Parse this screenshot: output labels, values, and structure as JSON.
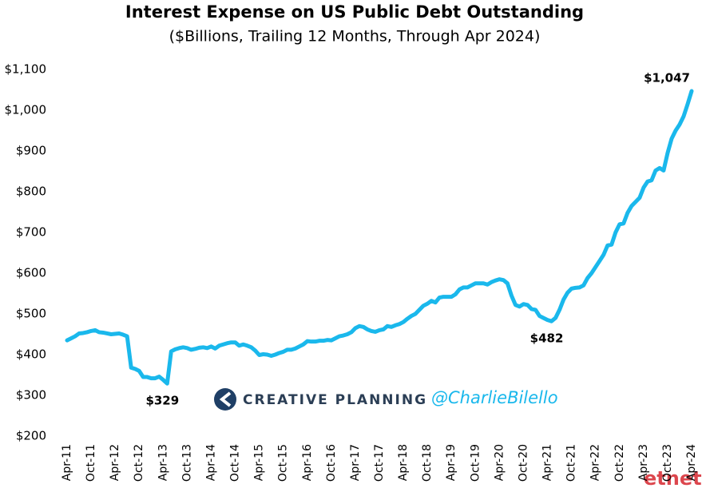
{
  "chart_data": {
    "type": "line",
    "title": "Interest Expense on US Public Debt Outstanding",
    "subtitle": "($Billions, Trailing 12 Months, Through Apr 2024)",
    "categories": [
      "Apr-11",
      null,
      null,
      null,
      null,
      null,
      "Oct-11",
      null,
      null,
      null,
      null,
      null,
      "Apr-12",
      null,
      null,
      null,
      null,
      null,
      "Oct-12",
      null,
      null,
      null,
      null,
      null,
      "Apr-13",
      null,
      null,
      null,
      null,
      null,
      "Oct-13",
      null,
      null,
      null,
      null,
      null,
      "Apr-14",
      null,
      null,
      null,
      null,
      null,
      "Oct-14",
      null,
      null,
      null,
      null,
      null,
      "Apr-15",
      null,
      null,
      null,
      null,
      null,
      "Oct-15",
      null,
      null,
      null,
      null,
      null,
      "Apr-16",
      null,
      null,
      null,
      null,
      null,
      "Oct-16",
      null,
      null,
      null,
      null,
      null,
      "Apr-17",
      null,
      null,
      null,
      null,
      null,
      "Oct-17",
      null,
      null,
      null,
      null,
      null,
      "Apr-18",
      null,
      null,
      null,
      null,
      null,
      "Oct-18",
      null,
      null,
      null,
      null,
      null,
      "Apr-19",
      null,
      null,
      null,
      null,
      null,
      "Oct-19",
      null,
      null,
      null,
      null,
      null,
      "Apr-20",
      null,
      null,
      null,
      null,
      null,
      "Oct-20",
      null,
      null,
      null,
      null,
      null,
      "Apr-21",
      null,
      null,
      null,
      null,
      null,
      "Oct-21",
      null,
      null,
      null,
      null,
      null,
      "Apr-22",
      null,
      null,
      null,
      null,
      null,
      "Oct-22",
      null,
      null,
      null,
      null,
      null,
      "Apr-23",
      null,
      null,
      null,
      null,
      null,
      "Oct-23",
      null,
      null,
      null,
      null,
      null,
      "Apr-24"
    ],
    "values": [
      435,
      440,
      445,
      452,
      453,
      455,
      458,
      460,
      455,
      454,
      452,
      450,
      451,
      452,
      449,
      445,
      368,
      365,
      360,
      345,
      345,
      342,
      342,
      346,
      338,
      329,
      408,
      413,
      416,
      418,
      416,
      412,
      414,
      417,
      418,
      416,
      420,
      415,
      422,
      425,
      428,
      430,
      430,
      422,
      425,
      422,
      418,
      410,
      399,
      401,
      400,
      397,
      400,
      404,
      407,
      412,
      412,
      415,
      420,
      425,
      433,
      432,
      432,
      434,
      434,
      436,
      435,
      440,
      445,
      447,
      450,
      455,
      465,
      470,
      468,
      462,
      458,
      456,
      460,
      462,
      470,
      468,
      472,
      475,
      480,
      488,
      495,
      500,
      510,
      520,
      525,
      532,
      528,
      540,
      542,
      542,
      542,
      548,
      560,
      565,
      565,
      570,
      575,
      575,
      575,
      572,
      578,
      582,
      585,
      583,
      575,
      545,
      522,
      518,
      524,
      522,
      512,
      510,
      495,
      490,
      485,
      482,
      490,
      510,
      535,
      552,
      562,
      564,
      565,
      570,
      588,
      600,
      615,
      630,
      645,
      668,
      670,
      700,
      720,
      722,
      748,
      765,
      775,
      785,
      810,
      825,
      828,
      852,
      858,
      852,
      895,
      930,
      950,
      965,
      985,
      1015,
      1047
    ],
    "value_labels": [
      null,
      null,
      null,
      null,
      null,
      null,
      null,
      null,
      null,
      null,
      null,
      null,
      null,
      null,
      null,
      null,
      null,
      null,
      null,
      null,
      null,
      null,
      null,
      null,
      null,
      "$329",
      null,
      null,
      null,
      null,
      null,
      null,
      null,
      null,
      null,
      null,
      null,
      null,
      null,
      null,
      null,
      null,
      null,
      null,
      null,
      null,
      null,
      null,
      null,
      null,
      null,
      null,
      null,
      null,
      null,
      null,
      null,
      null,
      null,
      null,
      null,
      null,
      null,
      null,
      null,
      null,
      null,
      null,
      null,
      null,
      null,
      null,
      null,
      null,
      null,
      null,
      null,
      null,
      null,
      null,
      null,
      null,
      null,
      null,
      null,
      null,
      null,
      null,
      null,
      null,
      null,
      null,
      null,
      null,
      null,
      null,
      null,
      null,
      null,
      null,
      null,
      null,
      null,
      null,
      null,
      null,
      null,
      null,
      null,
      null,
      null,
      null,
      null,
      null,
      null,
      null,
      null,
      null,
      null,
      null,
      null,
      "$482",
      null,
      null,
      null,
      null,
      null,
      null,
      null,
      null,
      null,
      null,
      null,
      null,
      null,
      null,
      null,
      null,
      null,
      null,
      null,
      null,
      null,
      null,
      null,
      null,
      null,
      null,
      null,
      null,
      null,
      null,
      null,
      null,
      null,
      null,
      "$1,047"
    ],
    "color": "#1ab8ec",
    "ylim": [
      200,
      1100
    ],
    "yticks": [
      {
        "value": 200,
        "label": "$200"
      },
      {
        "value": 300,
        "label": "$300"
      },
      {
        "value": 400,
        "label": "$400"
      },
      {
        "value": 500,
        "label": "$500"
      },
      {
        "value": 600,
        "label": "$600"
      },
      {
        "value": 700,
        "label": "$700"
      },
      {
        "value": 800,
        "label": "$800"
      },
      {
        "value": 900,
        "label": "$900"
      },
      {
        "value": 1000,
        "label": "$1,000"
      },
      {
        "value": 1100,
        "label": "$1,100"
      }
    ],
    "grid": false,
    "watermarks": [
      "CREATIVE PLANNING",
      "@CharlieBilello",
      "etnet"
    ]
  }
}
